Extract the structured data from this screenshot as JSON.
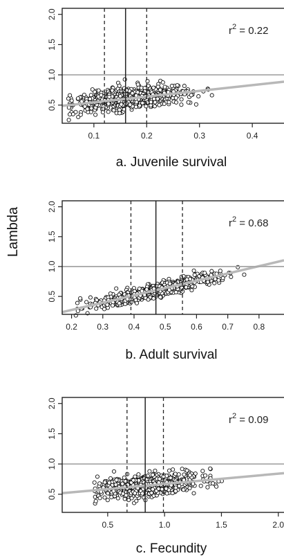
{
  "ylabel": "Lambda",
  "chart_data": [
    {
      "type": "scatter",
      "caption": "a. Juvenile survival",
      "annotation": {
        "r": "r",
        "sup": "2",
        "value": " = 0.22"
      },
      "xlim": [
        0.04,
        0.46
      ],
      "ylim": [
        0.2,
        2.1
      ],
      "xticks": [
        "0.1",
        "0.2",
        "0.3",
        "0.4"
      ],
      "xtick_values": [
        0.1,
        0.2,
        0.3,
        0.4
      ],
      "yticks": [
        "0.5",
        "1.0",
        "1.5",
        "2.0"
      ],
      "ytick_values": [
        0.5,
        1.0,
        1.5,
        2.0
      ],
      "reference_y": 1.0,
      "vlines": {
        "solid": 0.16,
        "dashed": [
          0.12,
          0.2
        ]
      },
      "fit": {
        "intercept": 0.45,
        "slope": 0.95
      },
      "cloud": {
        "xmin": 0.05,
        "xmax": 0.42,
        "xmean": 0.17,
        "xsd": 0.055,
        "ysd": 0.085,
        "n": 650
      }
    },
    {
      "type": "scatter",
      "caption": "b. Adult survival",
      "annotation": {
        "r": "r",
        "sup": "2",
        "value": " = 0.68"
      },
      "xlim": [
        0.17,
        0.88
      ],
      "ylim": [
        0.2,
        2.1
      ],
      "xticks": [
        "0.2",
        "0.3",
        "0.4",
        "0.5",
        "0.6",
        "0.7",
        "0.8"
      ],
      "xtick_values": [
        0.2,
        0.3,
        0.4,
        0.5,
        0.6,
        0.7,
        0.8
      ],
      "yticks": [
        "0.5",
        "1.0",
        "1.5",
        "2.0"
      ],
      "ytick_values": [
        0.5,
        1.0,
        1.5,
        2.0
      ],
      "reference_y": 1.0,
      "vlines": {
        "solid": 0.47,
        "dashed": [
          0.39,
          0.555
        ]
      },
      "fit": {
        "intercept": 0.03,
        "slope": 1.22
      },
      "cloud": {
        "xmin": 0.21,
        "xmax": 0.76,
        "xmean": 0.47,
        "xsd": 0.1,
        "ysd": 0.055,
        "n": 650
      }
    },
    {
      "type": "scatter",
      "caption": "c. Fecundity",
      "annotation": {
        "r": "r",
        "sup": "2",
        "value": " = 0.09"
      },
      "xlim": [
        0.1,
        2.05
      ],
      "ylim": [
        0.2,
        2.1
      ],
      "xticks": [
        "0.5",
        "1.0",
        "1.5",
        "2.0"
      ],
      "xtick_values": [
        0.5,
        1.0,
        1.5,
        2.0
      ],
      "yticks": [
        "0.5",
        "1.0",
        "1.5",
        "2.0"
      ],
      "ytick_values": [
        0.5,
        1.0,
        1.5,
        2.0
      ],
      "reference_y": 1.0,
      "vlines": {
        "solid": 0.83,
        "dashed": [
          0.67,
          0.99
        ]
      },
      "fit": {
        "intercept": 0.5,
        "slope": 0.17
      },
      "cloud": {
        "xmin": 0.38,
        "xmax": 1.75,
        "xmean": 0.85,
        "xsd": 0.22,
        "ysd": 0.09,
        "n": 650
      }
    }
  ]
}
